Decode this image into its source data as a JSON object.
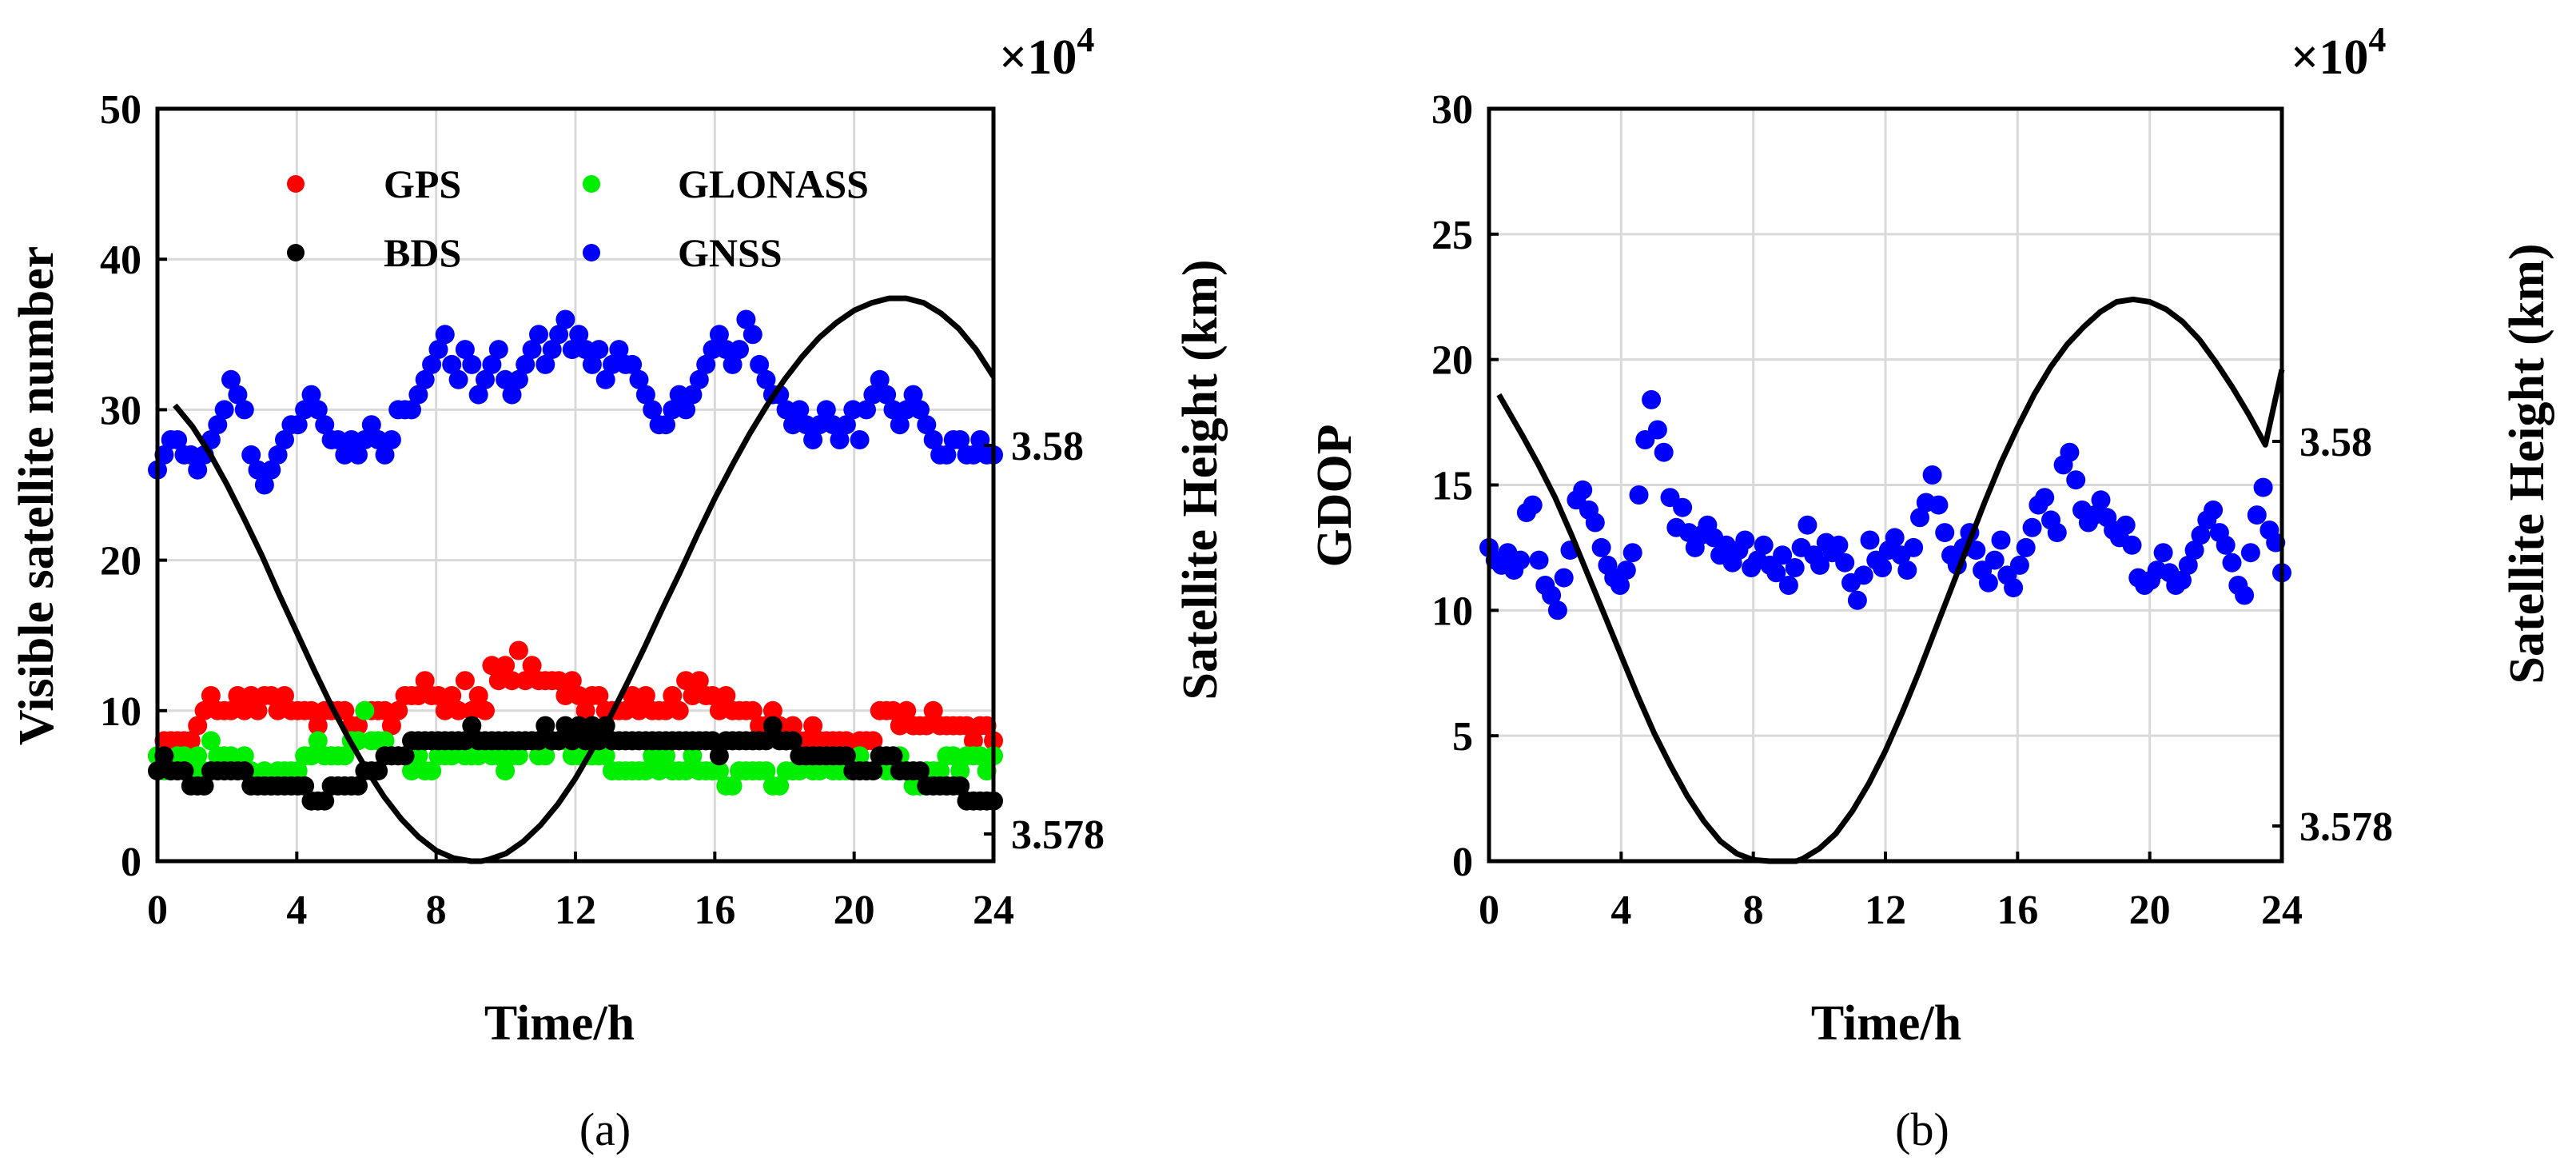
{
  "chart_data": [
    {
      "id": "a",
      "type": "scatter",
      "caption": "(a)",
      "xlabel": "Time/h",
      "ylabel": "Visible satellite number",
      "y2label": "Satellite Height (km)",
      "y2_multiplier": "×10",
      "y2_exponent": "4",
      "xlim": [
        0,
        24
      ],
      "ylim": [
        0,
        50
      ],
      "xticks": [
        "0",
        "4",
        "8",
        "12",
        "16",
        "20",
        "24"
      ],
      "yticks": [
        "0",
        "10",
        "20",
        "30",
        "40",
        "50"
      ],
      "y2ticks": [
        "3.578",
        "3.58"
      ],
      "grid": true,
      "legend_position": "top",
      "series": [
        {
          "name": "GPS",
          "color": "#ff0000",
          "values": [
            7,
            8,
            8,
            8,
            8,
            8,
            9,
            10,
            11,
            10,
            10,
            10,
            11,
            10,
            11,
            10,
            11,
            11,
            10,
            11,
            10,
            10,
            10,
            10,
            9,
            10,
            10,
            10,
            10,
            9,
            9,
            10,
            10,
            10,
            10,
            9,
            10,
            11,
            11,
            11,
            12,
            11,
            11,
            10,
            11,
            10,
            12,
            10,
            11,
            10,
            13,
            12,
            13,
            12,
            14,
            12,
            13,
            12,
            12,
            12,
            12,
            11,
            12,
            11,
            10,
            11,
            11,
            10,
            10,
            10,
            10,
            11,
            10,
            11,
            10,
            10,
            10,
            11,
            10,
            12,
            11,
            12,
            11,
            11,
            10,
            11,
            10,
            10,
            10,
            10,
            9,
            9,
            10,
            9,
            8,
            9,
            8,
            8,
            9,
            8,
            8,
            8,
            8,
            8,
            7,
            8,
            8,
            8,
            10,
            10,
            10,
            9,
            10,
            9,
            9,
            9,
            10,
            9,
            9,
            9,
            9,
            9,
            8,
            9,
            9,
            8
          ]
        },
        {
          "name": "GLONASS",
          "color": "#00ee00",
          "values": [
            7,
            6,
            6,
            7,
            7,
            6,
            7,
            6,
            8,
            7,
            7,
            7,
            6,
            7,
            6,
            5,
            6,
            5,
            6,
            6,
            6,
            6,
            7,
            7,
            8,
            7,
            7,
            7,
            7,
            8,
            8,
            10,
            8,
            8,
            8,
            7,
            7,
            7,
            6,
            7,
            6,
            6,
            7,
            7,
            7,
            8,
            7,
            7,
            7,
            8,
            7,
            7,
            6,
            7,
            7,
            8,
            8,
            7,
            7,
            8,
            8,
            8,
            7,
            7,
            7,
            7,
            7,
            7,
            6,
            6,
            6,
            6,
            6,
            6,
            7,
            6,
            7,
            6,
            6,
            6,
            7,
            6,
            6,
            6,
            6,
            5,
            5,
            6,
            6,
            6,
            6,
            6,
            5,
            5,
            6,
            6,
            6,
            7,
            6,
            6,
            7,
            6,
            6,
            6,
            6,
            7,
            6,
            6,
            7,
            6,
            6,
            7,
            6,
            5,
            5,
            6,
            6,
            6,
            7,
            7,
            6,
            7,
            7,
            7,
            6,
            7
          ]
        },
        {
          "name": "BDS",
          "color": "#000000",
          "values": [
            6,
            7,
            6,
            6,
            6,
            5,
            5,
            5,
            6,
            6,
            6,
            6,
            6,
            6,
            5,
            5,
            5,
            5,
            5,
            5,
            5,
            5,
            5,
            4,
            4,
            4,
            5,
            5,
            5,
            5,
            5,
            6,
            6,
            6,
            7,
            7,
            7,
            7,
            8,
            8,
            8,
            8,
            8,
            8,
            8,
            8,
            8,
            9,
            8,
            8,
            8,
            8,
            8,
            8,
            8,
            8,
            8,
            8,
            9,
            8,
            8,
            9,
            8,
            9,
            8,
            9,
            8,
            9,
            8,
            8,
            8,
            8,
            8,
            8,
            8,
            8,
            8,
            8,
            8,
            8,
            8,
            8,
            8,
            8,
            7,
            8,
            8,
            8,
            8,
            8,
            8,
            8,
            9,
            8,
            8,
            8,
            7,
            7,
            7,
            7,
            7,
            7,
            7,
            7,
            6,
            6,
            6,
            6,
            7,
            7,
            7,
            6,
            6,
            6,
            6,
            5,
            5,
            5,
            5,
            5,
            5,
            4,
            4,
            4,
            4,
            4
          ]
        },
        {
          "name": "GNSS",
          "color": "#0000ff",
          "values": [
            26,
            27,
            28,
            28,
            27,
            27,
            26,
            27,
            28,
            29,
            30,
            32,
            31,
            30,
            27,
            26,
            25,
            26,
            27,
            28,
            29,
            29,
            30,
            31,
            30,
            29,
            28,
            28,
            27,
            28,
            27,
            28,
            29,
            28,
            27,
            28,
            30,
            30,
            30,
            31,
            32,
            33,
            34,
            35,
            33,
            32,
            34,
            33,
            31,
            32,
            33,
            34,
            32,
            31,
            32,
            33,
            34,
            35,
            33,
            34,
            35,
            36,
            34,
            35,
            34,
            33,
            34,
            32,
            33,
            34,
            33,
            33,
            32,
            31,
            30,
            29,
            29,
            30,
            31,
            30,
            31,
            32,
            33,
            34,
            35,
            34,
            33,
            34,
            36,
            35,
            33,
            32,
            31,
            31,
            30,
            29,
            30,
            29,
            28,
            29,
            30,
            29,
            28,
            29,
            30,
            28,
            30,
            31,
            32,
            31,
            30,
            29,
            30,
            31,
            30,
            29,
            28,
            27,
            27,
            28,
            28,
            27,
            27,
            28,
            27,
            27
          ]
        },
        {
          "name": "Satellite Height",
          "type": "line",
          "axis": "right",
          "color": "#000000",
          "x": [
            0.5,
            1,
            1.5,
            2,
            2.5,
            3,
            3.5,
            4,
            4.5,
            5,
            5.5,
            6,
            6.5,
            7,
            7.5,
            8,
            8.5,
            9,
            9.3,
            9.5,
            10,
            10.5,
            11,
            11.5,
            12,
            12.5,
            13,
            13.5,
            14,
            14.5,
            15,
            15.5,
            16,
            16.5,
            17,
            17.5,
            18,
            18.5,
            19,
            19.5,
            20,
            20.5,
            21,
            21.3,
            21.5,
            22,
            22.5,
            23,
            23.5,
            24
          ],
          "y": [
            30.3,
            28.9,
            27.1,
            25.0,
            22.7,
            20.3,
            17.7,
            15.2,
            12.7,
            10.3,
            8.1,
            6.1,
            4.3,
            2.8,
            1.6,
            0.7,
            0.2,
            0.0,
            0.0,
            0.1,
            0.5,
            1.3,
            2.4,
            3.8,
            5.5,
            7.5,
            9.6,
            11.9,
            14.3,
            16.8,
            19.2,
            21.7,
            24.1,
            26.3,
            28.4,
            30.3,
            32.0,
            33.5,
            34.8,
            35.8,
            36.6,
            37.1,
            37.4,
            37.4,
            37.4,
            37.1,
            36.4,
            35.4,
            34.0,
            32.2
          ]
        }
      ]
    },
    {
      "id": "b",
      "type": "scatter",
      "caption": "(b)",
      "xlabel": "Time/h",
      "ylabel": "GDOP",
      "y2label": "Satellite Height (km)",
      "y2_multiplier": "×10",
      "y2_exponent": "4",
      "xlim": [
        0,
        24
      ],
      "ylim": [
        0,
        30
      ],
      "xticks": [
        "0",
        "4",
        "8",
        "12",
        "16",
        "20",
        "24"
      ],
      "yticks": [
        "0",
        "5",
        "10",
        "15",
        "20",
        "25",
        "30"
      ],
      "y2ticks": [
        "3.578",
        "3.58"
      ],
      "grid": true,
      "series": [
        {
          "name": "GDOP",
          "color": "#0000ff",
          "values": [
            12.5,
            12.0,
            11.8,
            12.3,
            11.6,
            12.0,
            13.9,
            14.2,
            12.0,
            11.0,
            10.6,
            10.0,
            11.3,
            12.4,
            14.4,
            14.8,
            14.0,
            13.5,
            12.5,
            11.8,
            11.3,
            11.0,
            11.6,
            12.3,
            14.6,
            16.8,
            18.4,
            17.2,
            16.3,
            14.5,
            13.3,
            14.1,
            13.1,
            12.5,
            13.0,
            13.4,
            12.9,
            12.2,
            12.6,
            11.9,
            12.4,
            12.8,
            11.7,
            12.0,
            12.6,
            11.8,
            11.5,
            12.2,
            11.0,
            11.7,
            12.5,
            13.4,
            12.2,
            11.8,
            12.7,
            12.3,
            12.6,
            11.9,
            11.1,
            10.4,
            11.4,
            12.8,
            12.0,
            11.7,
            12.4,
            12.9,
            12.2,
            11.6,
            12.5,
            13.7,
            14.3,
            15.4,
            14.2,
            13.1,
            12.2,
            11.8,
            12.5,
            13.1,
            12.4,
            11.6,
            11.1,
            12.0,
            12.8,
            11.4,
            10.9,
            11.8,
            12.5,
            13.3,
            14.2,
            14.5,
            13.6,
            13.1,
            15.8,
            16.3,
            15.2,
            14.0,
            13.5,
            13.8,
            14.4,
            13.7,
            13.2,
            12.9,
            13.4,
            12.6,
            11.3,
            11.0,
            11.2,
            11.6,
            12.3,
            11.5,
            11.0,
            11.2,
            11.8,
            12.4,
            13.0,
            13.6,
            14.0,
            13.1,
            12.6,
            11.9,
            11.0,
            10.6,
            12.3,
            13.8,
            14.9,
            13.2,
            12.7,
            11.5
          ]
        },
        {
          "name": "Satellite Height",
          "type": "line",
          "axis": "right",
          "color": "#000000",
          "x": [
            0.3,
            1,
            1.5,
            2,
            2.5,
            3,
            3.5,
            4,
            4.5,
            5,
            5.5,
            6,
            6.5,
            7,
            7.5,
            8,
            8.5,
            9,
            9.3,
            9.5,
            10,
            10.5,
            11,
            11.5,
            12,
            12.5,
            13,
            13.5,
            14,
            14.5,
            15,
            15.5,
            16,
            16.5,
            17,
            17.5,
            18,
            18.5,
            19,
            19.5,
            20,
            20.5,
            21,
            21.5,
            22,
            22.5,
            23,
            23.5,
            24
          ],
          "y": [
            18.6,
            17.0,
            15.8,
            14.5,
            13.0,
            11.4,
            9.8,
            8.2,
            6.6,
            5.1,
            3.8,
            2.6,
            1.6,
            0.8,
            0.3,
            0.05,
            0.0,
            0.0,
            0.0,
            0.1,
            0.5,
            1.1,
            2.0,
            3.1,
            4.4,
            5.9,
            7.5,
            9.2,
            10.9,
            12.6,
            14.3,
            15.9,
            17.3,
            18.6,
            19.7,
            20.6,
            21.3,
            21.9,
            22.3,
            22.4,
            22.3,
            22.0,
            21.5,
            20.8,
            19.9,
            18.9,
            17.8,
            16.6,
            19.6
          ]
        }
      ]
    }
  ]
}
